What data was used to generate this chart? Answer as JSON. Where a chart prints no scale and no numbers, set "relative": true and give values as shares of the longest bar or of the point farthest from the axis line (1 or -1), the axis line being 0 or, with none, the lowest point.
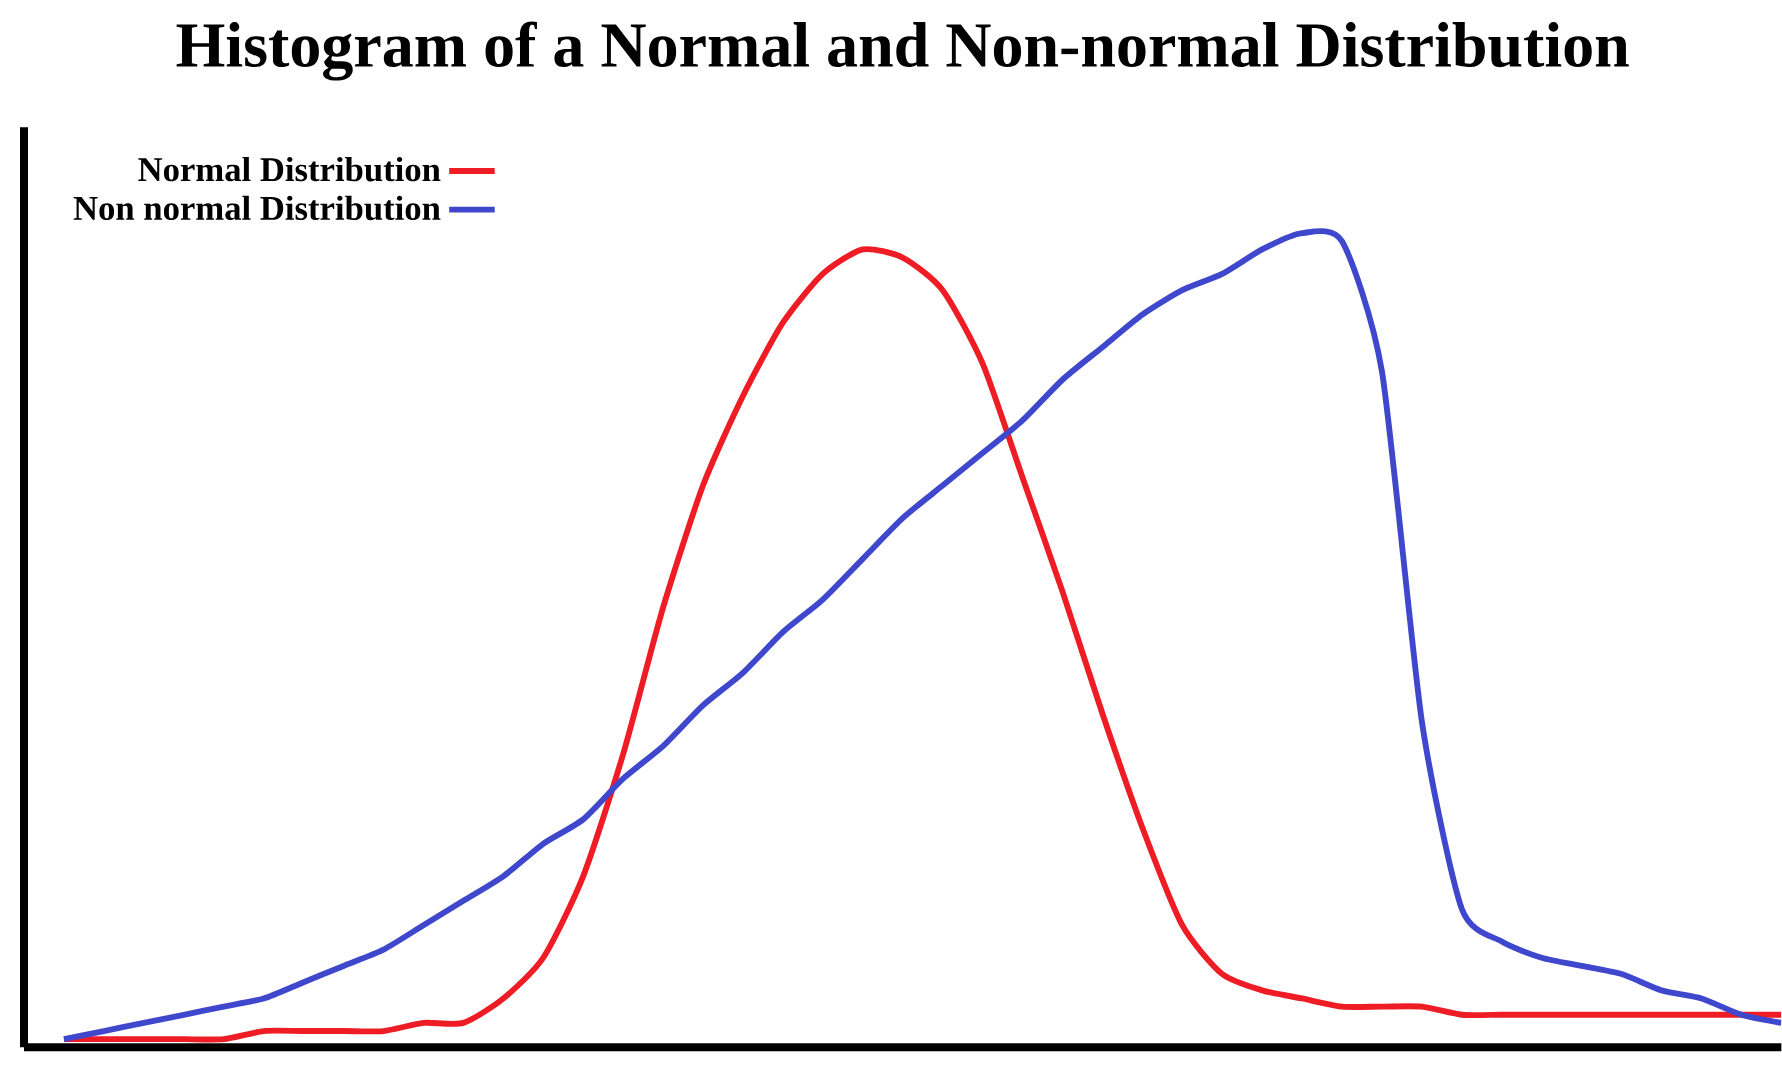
{
  "chart_data": {
    "type": "line",
    "title": "Histogram of a Normal and Non-normal Distribution",
    "relative": true,
    "legend": "top left",
    "categories": [
      null,
      null,
      null,
      null,
      null,
      null,
      null,
      null,
      null,
      null,
      null,
      null,
      null,
      null,
      null,
      null,
      null,
      null,
      null,
      null,
      null,
      null,
      null,
      null,
      null,
      null,
      null,
      null,
      null,
      null,
      null,
      null,
      null,
      null,
      null,
      null,
      null,
      null,
      null,
      null,
      null,
      null,
      null,
      null
    ],
    "series": [
      {
        "name": "Normal Distribution",
        "color": "#ee1c24",
        "values": [
          0.01,
          0.01,
          0.01,
          0.01,
          0.01,
          0.02,
          0.02,
          0.02,
          0.02,
          0.03,
          0.03,
          0.06,
          0.11,
          0.21,
          0.36,
          0.54,
          0.69,
          0.8,
          0.89,
          0.95,
          0.98,
          0.97,
          0.93,
          0.84,
          0.7,
          0.56,
          0.41,
          0.27,
          0.15,
          0.09,
          0.07,
          0.06,
          0.05,
          0.05,
          0.05,
          0.04,
          0.04,
          0.04,
          0.04,
          0.04,
          0.04,
          0.04,
          0.04,
          0.04
        ]
      },
      {
        "name": "Non normal Distribution",
        "color": "#3f48cc",
        "values": [
          0.01,
          0.02,
          0.03,
          0.04,
          0.05,
          0.06,
          0.08,
          0.1,
          0.12,
          0.15,
          0.18,
          0.21,
          0.25,
          0.28,
          0.33,
          0.37,
          0.42,
          0.46,
          0.51,
          0.55,
          0.6,
          0.65,
          0.69,
          0.73,
          0.77,
          0.82,
          0.86,
          0.9,
          0.93,
          0.95,
          0.98,
          1.0,
          0.99,
          0.83,
          0.4,
          0.17,
          0.13,
          0.11,
          0.1,
          0.09,
          0.07,
          0.06,
          0.04,
          0.03
        ]
      }
    ]
  }
}
